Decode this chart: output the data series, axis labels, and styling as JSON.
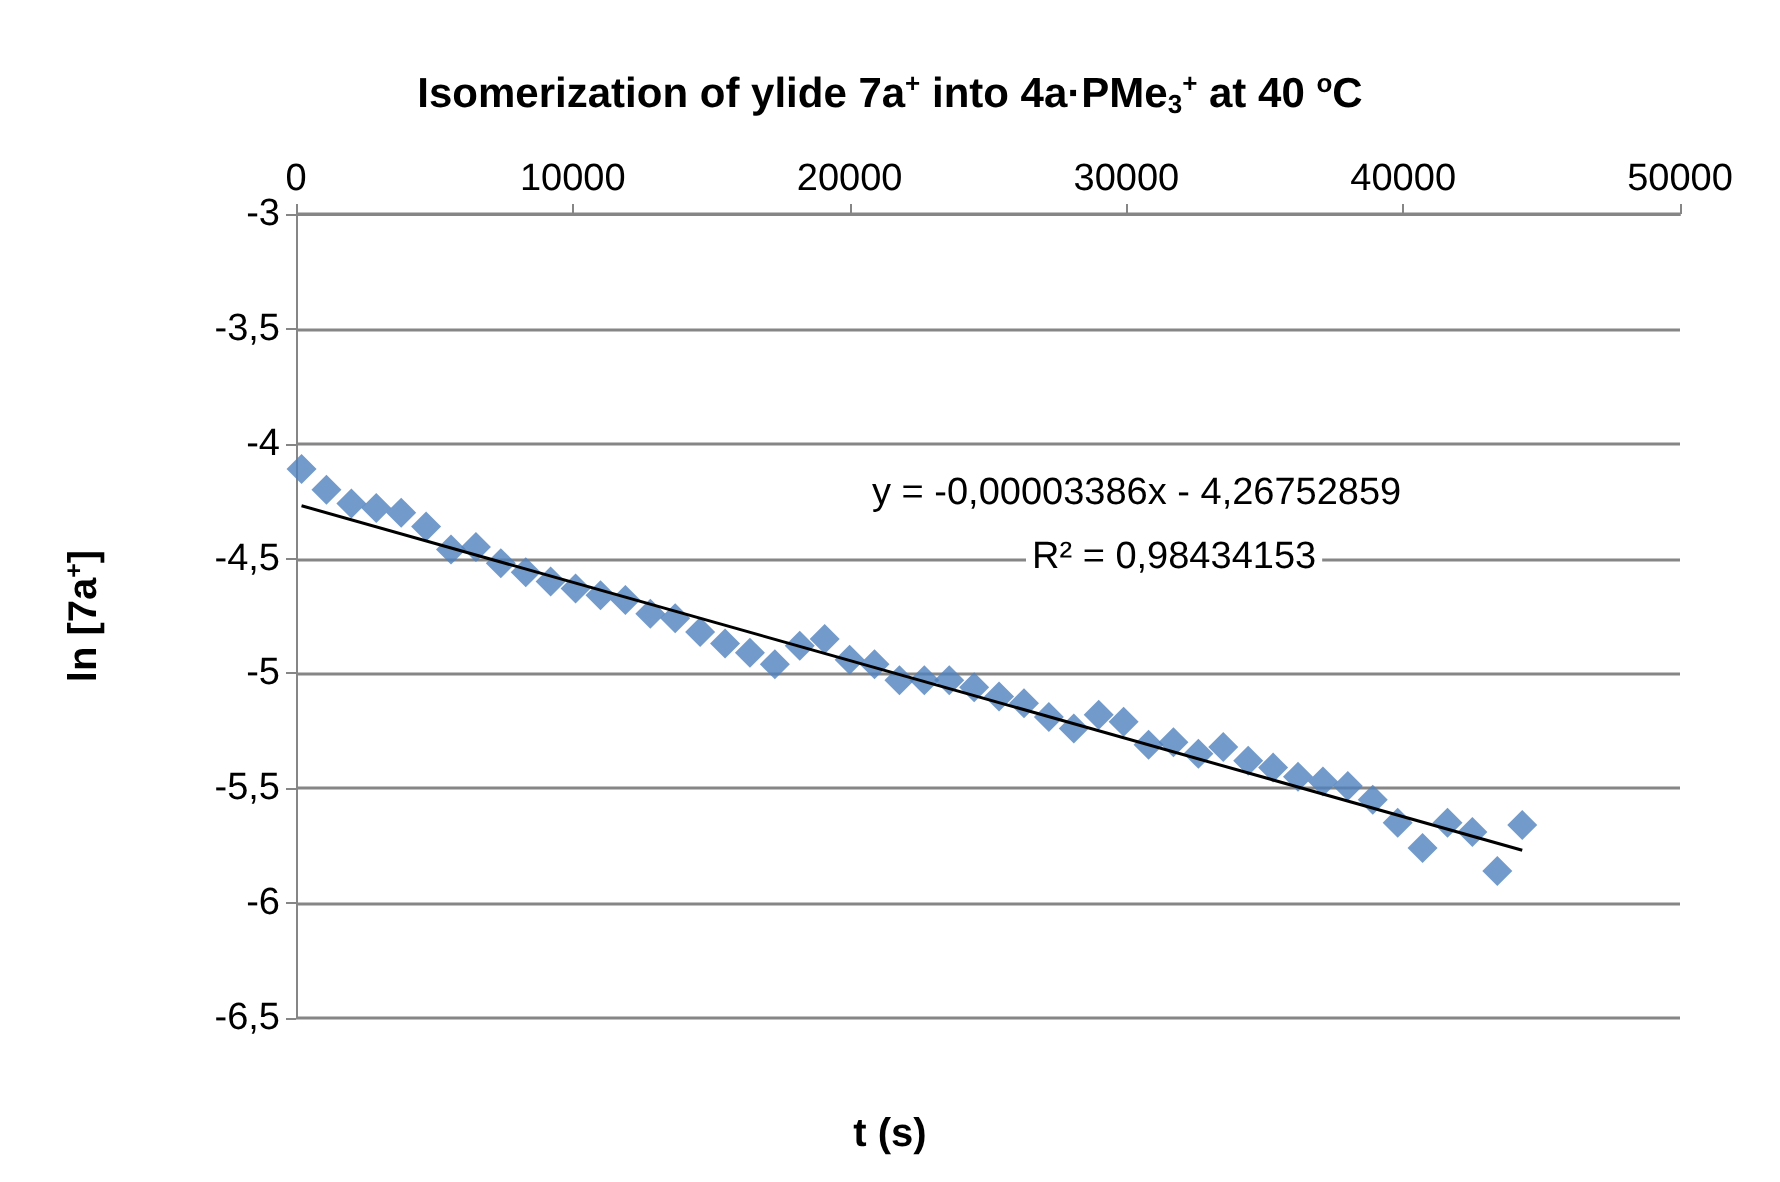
{
  "chart_data": {
    "type": "scatter",
    "title": "Isomerization of ylide 7a$^{+}$ into 4a·PMe$_{3}$$^{+}$ at 40 $^{o}$C",
    "xlabel": "t (s)",
    "ylabel": "ln [7a$^{+}$]",
    "annotations": [
      "y = -0,00003386x - 4,26752859",
      "R² = 0,98434153"
    ],
    "xlim": [
      0,
      50000
    ],
    "xticks": [
      0,
      10000,
      20000,
      30000,
      40000,
      50000
    ],
    "ylim": [
      -6.5,
      -3
    ],
    "yticks": [
      {
        "value": -6.5,
        "label": "-6,5"
      },
      -6,
      {
        "value": -5.5,
        "label": "-5,5"
      },
      -5,
      {
        "value": -4.5,
        "label": "-4,5"
      },
      -4,
      {
        "value": -3.5,
        "label": "-3,5"
      },
      -3
    ],
    "grid": "y",
    "marker": "diamond",
    "series": [
      {
        "color": "#4f81bd",
        "x": [
          200,
          1100,
          2000,
          2900,
          3800,
          4700,
          5600,
          6500,
          7400,
          8300,
          9200,
          10100,
          11000,
          11900,
          12800,
          13700,
          14600,
          15500,
          16400,
          17300,
          18200,
          19100,
          20000,
          20900,
          21800,
          22700,
          23600,
          24500,
          25400,
          26300,
          27200,
          28100,
          29000,
          29900,
          30800,
          31700,
          32600,
          33500,
          34400,
          35300,
          36200,
          37100,
          38000,
          38900,
          39800,
          40700,
          41600,
          42500,
          43400,
          44300
        ],
        "values": [
          -4.11,
          -4.2,
          -4.26,
          -4.28,
          -4.3,
          -4.36,
          -4.46,
          -4.45,
          -4.52,
          -4.56,
          -4.6,
          -4.63,
          -4.66,
          -4.68,
          -4.74,
          -4.76,
          -4.82,
          -4.87,
          -4.91,
          -4.96,
          -4.88,
          -4.85,
          -4.94,
          -4.96,
          -5.03,
          -5.03,
          -5.03,
          -5.06,
          -5.1,
          -5.13,
          -5.19,
          -5.24,
          -5.18,
          -5.21,
          -5.31,
          -5.3,
          -5.35,
          -5.32,
          -5.38,
          -5.41,
          -5.45,
          -5.47,
          -5.49,
          -5.55,
          -5.65,
          -5.76,
          -5.65,
          -5.69,
          -5.86,
          -5.66
        ]
      },
      {
        "type": "line",
        "color": "#000000",
        "marker": "none",
        "x": [
          200,
          44300
        ],
        "values": [
          -4.27,
          -5.77
        ]
      }
    ]
  }
}
